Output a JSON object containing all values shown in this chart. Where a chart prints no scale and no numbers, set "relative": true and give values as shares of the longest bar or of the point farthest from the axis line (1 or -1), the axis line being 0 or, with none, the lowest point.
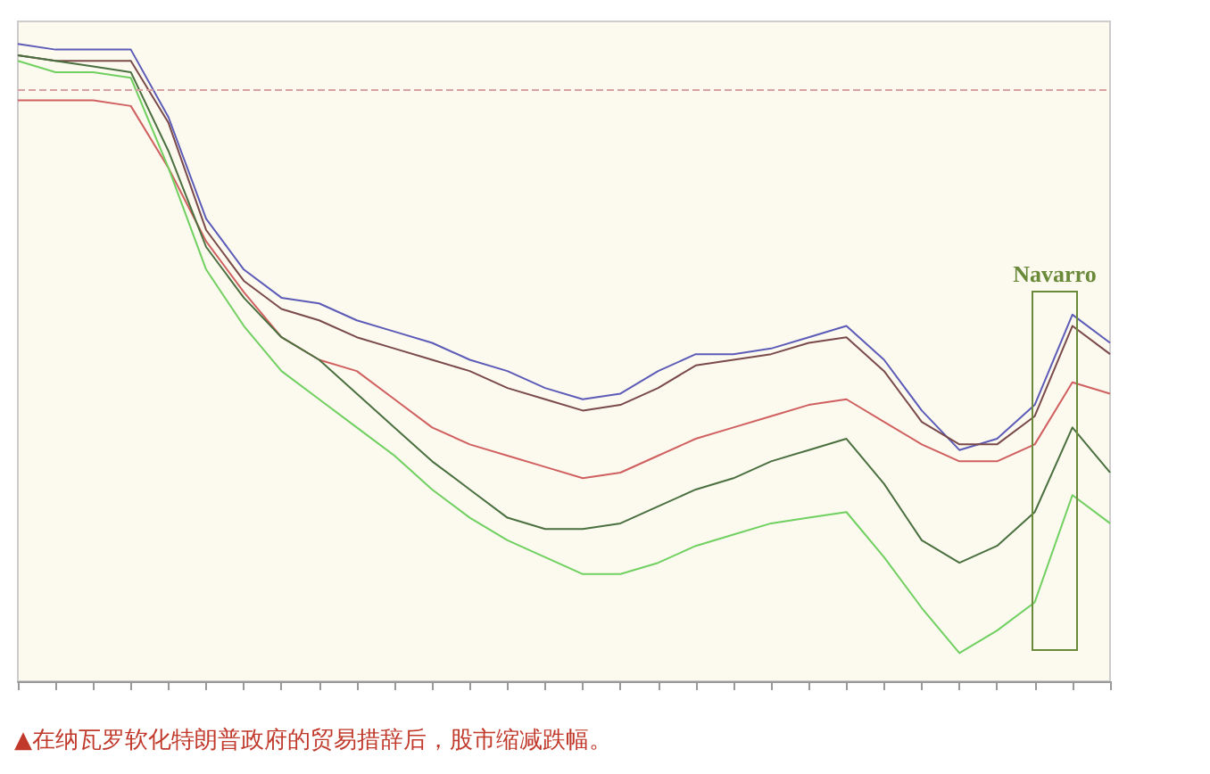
{
  "chart_data": {
    "type": "line",
    "relative": true,
    "categories": [
      null,
      null,
      null,
      null,
      null,
      null,
      null,
      null,
      null,
      null,
      null,
      null,
      null,
      null,
      null,
      null,
      null,
      null,
      null,
      null,
      null,
      null,
      null,
      null,
      null,
      null,
      null,
      null,
      null,
      null
    ],
    "series": [
      {
        "color": "#5c5cb8",
        "values": [
          0.08,
          0.07,
          0.07,
          0.07,
          -0.05,
          -0.23,
          -0.32,
          -0.37,
          -0.38,
          -0.41,
          -0.43,
          -0.45,
          -0.48,
          -0.5,
          -0.53,
          -0.55,
          -0.54,
          -0.5,
          -0.47,
          -0.47,
          -0.46,
          -0.44,
          -0.42,
          -0.48,
          -0.57,
          -0.64,
          -0.62,
          -0.56,
          -0.4,
          -0.45
        ]
      },
      {
        "color": "#7a4a4a",
        "values": [
          0.06,
          0.05,
          0.05,
          0.05,
          -0.06,
          -0.25,
          -0.34,
          -0.39,
          -0.41,
          -0.44,
          -0.46,
          -0.48,
          -0.5,
          -0.53,
          -0.55,
          -0.57,
          -0.56,
          -0.53,
          -0.49,
          -0.48,
          -0.47,
          -0.45,
          -0.44,
          -0.5,
          -0.59,
          -0.63,
          -0.63,
          -0.58,
          -0.42,
          -0.47
        ]
      },
      {
        "color": "#d06060",
        "values": [
          -0.02,
          -0.02,
          -0.02,
          -0.03,
          -0.14,
          -0.27,
          -0.36,
          -0.44,
          -0.48,
          -0.5,
          -0.55,
          -0.6,
          -0.63,
          -0.65,
          -0.67,
          -0.69,
          -0.68,
          -0.65,
          -0.62,
          -0.6,
          -0.58,
          -0.56,
          -0.55,
          -0.59,
          -0.63,
          -0.66,
          -0.66,
          -0.63,
          -0.52,
          -0.54
        ]
      },
      {
        "color": "#4a7040",
        "values": [
          0.06,
          0.05,
          0.04,
          0.03,
          -0.11,
          -0.28,
          -0.37,
          -0.44,
          -0.48,
          -0.54,
          -0.6,
          -0.66,
          -0.71,
          -0.76,
          -0.78,
          -0.78,
          -0.77,
          -0.74,
          -0.71,
          -0.69,
          -0.66,
          -0.64,
          -0.62,
          -0.7,
          -0.8,
          -0.84,
          -0.81,
          -0.75,
          -0.6,
          -0.68
        ]
      },
      {
        "color": "#70d060",
        "values": [
          0.05,
          0.03,
          0.03,
          0.02,
          -0.14,
          -0.32,
          -0.42,
          -0.5,
          -0.55,
          -0.6,
          -0.65,
          -0.71,
          -0.76,
          -0.8,
          -0.83,
          -0.86,
          -0.86,
          -0.84,
          -0.81,
          -0.79,
          -0.77,
          -0.76,
          -0.75,
          -0.83,
          -0.92,
          -1,
          -0.96,
          -0.91,
          -0.72,
          -0.77
        ]
      }
    ],
    "ref_lines": [
      {
        "axis": "y",
        "value": 0,
        "color": "#d9a0a0",
        "line_style": "dashed"
      }
    ],
    "annotations": [
      "Navarro",
      "▲在纳瓦罗软化特朗普政府的贸易措辞后，股市缩减跌幅。"
    ]
  }
}
